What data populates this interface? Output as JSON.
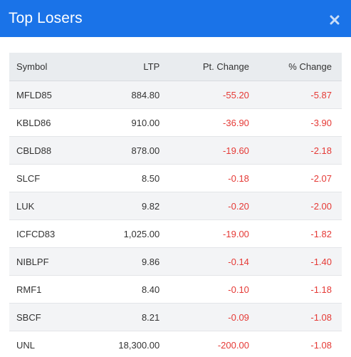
{
  "modal": {
    "title": "Top Losers",
    "close_icon": "close-icon"
  },
  "colors": {
    "header_bg": "#1a73e8",
    "negative": "#e53935",
    "table_header_bg": "#e9ecef",
    "stripe": "#f3f4f6"
  },
  "table": {
    "headers": {
      "symbol": "Symbol",
      "ltp": "LTP",
      "pt_change": "Pt. Change",
      "pct_change": "% Change"
    },
    "rows": [
      {
        "symbol": "MFLD85",
        "ltp": "884.80",
        "pt_change": "-55.20",
        "pct_change": "-5.87"
      },
      {
        "symbol": "KBLD86",
        "ltp": "910.00",
        "pt_change": "-36.90",
        "pct_change": "-3.90"
      },
      {
        "symbol": "CBLD88",
        "ltp": "878.00",
        "pt_change": "-19.60",
        "pct_change": "-2.18"
      },
      {
        "symbol": "SLCF",
        "ltp": "8.50",
        "pt_change": "-0.18",
        "pct_change": "-2.07"
      },
      {
        "symbol": "LUK",
        "ltp": "9.82",
        "pt_change": "-0.20",
        "pct_change": "-2.00"
      },
      {
        "symbol": "ICFCD83",
        "ltp": "1,025.00",
        "pt_change": "-19.00",
        "pct_change": "-1.82"
      },
      {
        "symbol": "NIBLPF",
        "ltp": "9.86",
        "pt_change": "-0.14",
        "pct_change": "-1.40"
      },
      {
        "symbol": "RMF1",
        "ltp": "8.40",
        "pt_change": "-0.10",
        "pct_change": "-1.18"
      },
      {
        "symbol": "SBCF",
        "ltp": "8.21",
        "pt_change": "-0.09",
        "pct_change": "-1.08"
      },
      {
        "symbol": "UNL",
        "ltp": "18,300.00",
        "pt_change": "-200.00",
        "pct_change": "-1.08"
      }
    ]
  }
}
